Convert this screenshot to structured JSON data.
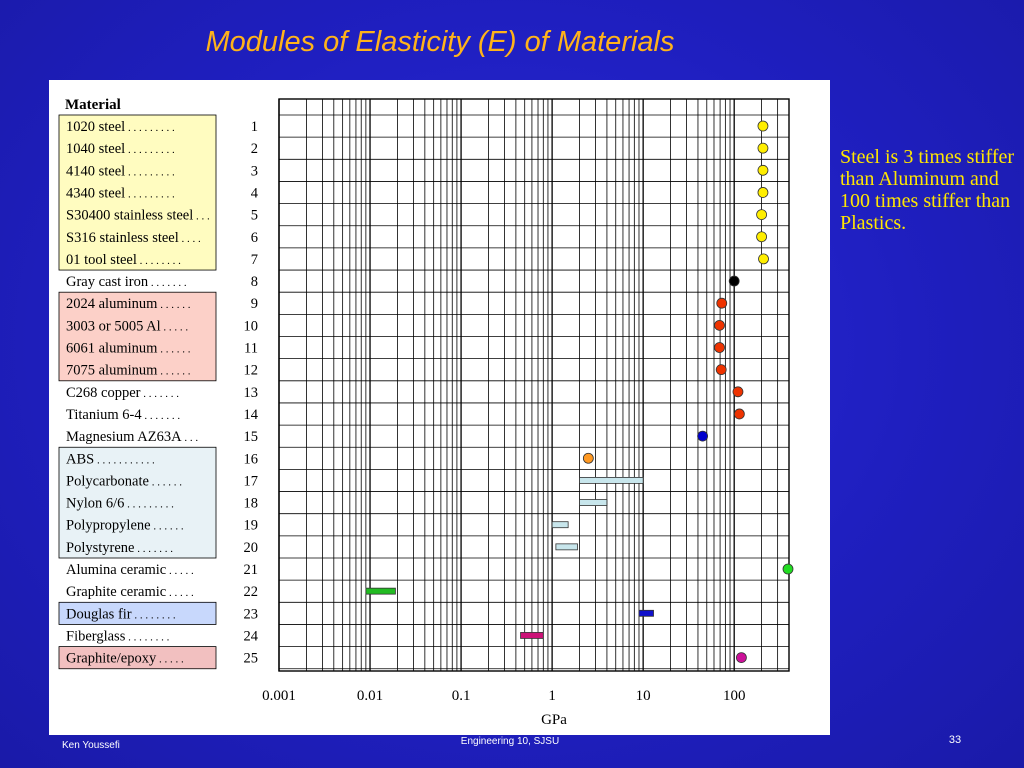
{
  "slide": {
    "title": "Modules of Elasticity (E) of Materials",
    "note": "Steel is 3 times stiffer than Aluminum  and 100 times stiffer than Plastics.",
    "footer_author": "Ken Youssefi",
    "footer_center": "Engineering 10, SJSU",
    "page_number": "33"
  },
  "colors": {
    "steel_group": "#fffcc0",
    "aluminum_group": "#fcd0c8",
    "plastics_group": "#e8f2f6",
    "douglas_group": "#c8d8fc",
    "graphite_epoxy_group": "#f2c0c0"
  },
  "chart_data": {
    "type": "scatter",
    "title": "",
    "header_label": "Material",
    "xlabel": "GPa",
    "xscale": "log",
    "xlim": [
      0.001,
      400
    ],
    "x_ticks": [
      0.001,
      0.01,
      0.1,
      1,
      10,
      100
    ],
    "x_tick_labels": [
      "0.001",
      "0.01",
      "0.1",
      "1",
      "10",
      "100"
    ],
    "grid": true,
    "materials": [
      {
        "id": 1,
        "name": "1020 steel",
        "dots": " . . . . . . . . .",
        "marker": "point",
        "value": 207,
        "color": "#ffee00",
        "group": "steel"
      },
      {
        "id": 2,
        "name": "1040 steel",
        "dots": " . . . . . . . . .",
        "marker": "point",
        "value": 207,
        "color": "#ffee00",
        "group": "steel"
      },
      {
        "id": 3,
        "name": "4140 steel",
        "dots": " . . . . . . . . .",
        "marker": "point",
        "value": 207,
        "color": "#ffee00",
        "group": "steel"
      },
      {
        "id": 4,
        "name": "4340 steel",
        "dots": " . . . . . . . . .",
        "marker": "point",
        "value": 207,
        "color": "#ffee00",
        "group": "steel"
      },
      {
        "id": 5,
        "name": "S30400 stainless steel",
        "dots": " . . .",
        "marker": "point",
        "value": 200,
        "color": "#ffee00",
        "group": "steel"
      },
      {
        "id": 6,
        "name": "S316 stainless steel",
        "dots": " . . . .",
        "marker": "point",
        "value": 200,
        "color": "#ffee00",
        "group": "steel"
      },
      {
        "id": 7,
        "name": "01 tool steel",
        "dots": " . . . . . . . .",
        "marker": "point",
        "value": 210,
        "color": "#ffee00",
        "group": "steel"
      },
      {
        "id": 8,
        "name": "Gray cast iron",
        "dots": " . . . . . . .",
        "marker": "point",
        "value": 100,
        "color": "#000000",
        "group": "none"
      },
      {
        "id": 9,
        "name": "2024 aluminum",
        "dots": " . . . . . .",
        "marker": "point",
        "value": 73,
        "color": "#ee3300",
        "group": "aluminum"
      },
      {
        "id": 10,
        "name": "3003 or 5005 Al",
        "dots": " . . . . .",
        "marker": "point",
        "value": 69,
        "color": "#ee3300",
        "group": "aluminum"
      },
      {
        "id": 11,
        "name": "6061 aluminum",
        "dots": " . . . . . .",
        "marker": "point",
        "value": 69,
        "color": "#ee3300",
        "group": "aluminum"
      },
      {
        "id": 12,
        "name": "7075 aluminum",
        "dots": " . . . . . .",
        "marker": "point",
        "value": 72,
        "color": "#ee3300",
        "group": "aluminum"
      },
      {
        "id": 13,
        "name": "C268 copper",
        "dots": " . . . . . . .",
        "marker": "point",
        "value": 110,
        "color": "#ee3300",
        "group": "none"
      },
      {
        "id": 14,
        "name": "Titanium 6-4",
        "dots": " . . . . . . .",
        "marker": "point",
        "value": 114,
        "color": "#ee3300",
        "group": "none"
      },
      {
        "id": 15,
        "name": "Magnesium AZ63A",
        "dots": " . . .",
        "marker": "point",
        "value": 45,
        "color": "#0000cc",
        "group": "none"
      },
      {
        "id": 16,
        "name": "ABS",
        "dots": " . . . . . . . . . . .",
        "marker": "point",
        "value": 2.5,
        "color": "#ff9922",
        "group": "plastics"
      },
      {
        "id": 17,
        "name": "Polycarbonate",
        "dots": " . . . . . .",
        "marker": "range",
        "min": 2.0,
        "max": 10.0,
        "color": "#c8e6ec",
        "group": "plastics"
      },
      {
        "id": 18,
        "name": "Nylon 6/6",
        "dots": " . . . . . . . . .",
        "marker": "range",
        "min": 2.0,
        "max": 4.0,
        "color": "#c8e6ec",
        "group": "plastics"
      },
      {
        "id": 19,
        "name": "Polypropylene",
        "dots": " . . . . . .",
        "marker": "range",
        "min": 1.0,
        "max": 1.5,
        "color": "#c8e6ec",
        "group": "plastics"
      },
      {
        "id": 20,
        "name": "Polystyrene",
        "dots": " . . . . . . .",
        "marker": "range",
        "min": 1.1,
        "max": 1.9,
        "color": "#c8e6ec",
        "group": "plastics"
      },
      {
        "id": 21,
        "name": "Alumina ceramic",
        "dots": " . . . . .",
        "marker": "point",
        "value": 390,
        "color": "#22dd22",
        "group": "none"
      },
      {
        "id": 22,
        "name": "Graphite ceramic",
        "dots": " . . . . .",
        "marker": "range",
        "min": 0.009,
        "max": 0.019,
        "color": "#22bb22",
        "group": "none"
      },
      {
        "id": 23,
        "name": "Douglas fir",
        "dots": " . . . . . . . .",
        "marker": "range",
        "min": 9.0,
        "max": 13.0,
        "color": "#1111cc",
        "group": "douglas"
      },
      {
        "id": 24,
        "name": "Fiberglass",
        "dots": " . . . . . . . .",
        "marker": "range",
        "min": 0.45,
        "max": 0.8,
        "color": "#cc1177",
        "group": "none"
      },
      {
        "id": 25,
        "name": "Graphite/epoxy",
        "dots": " . . . . .",
        "marker": "point",
        "value": 120,
        "color": "#cc1199",
        "group": "graphite_epoxy"
      }
    ]
  }
}
